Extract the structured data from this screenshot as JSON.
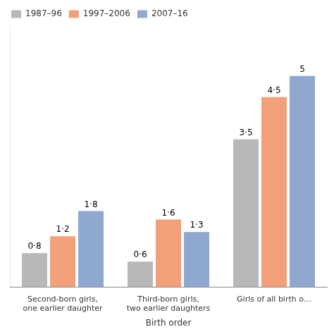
{
  "chart_data": {
    "type": "bar",
    "categories": [
      "Second-born girls,\none earlier daughter",
      "Third-born girls,\ntwo earlier daughters",
      "Girls of all birth o…"
    ],
    "series": [
      {
        "name": "1987–96",
        "color": "#b8b8b8",
        "values": [
          0.8,
          0.6,
          3.5
        ],
        "value_labels": [
          "0·8",
          "0·6",
          "3·5"
        ]
      },
      {
        "name": "1997–2006",
        "color": "#f2a07a",
        "values": [
          1.2,
          1.6,
          4.5
        ],
        "value_labels": [
          "1·2",
          "1·6",
          "4·5"
        ]
      },
      {
        "name": "2007–16",
        "color": "#8fa8cf",
        "values": [
          1.8,
          1.3,
          5.0
        ],
        "value_labels": [
          "1·8",
          "1·3",
          "5"
        ]
      }
    ],
    "xlabel": "Birth order",
    "ylim": [
      0,
      6.2
    ],
    "tick_labels": "x",
    "grid": false,
    "legend": "upper left",
    "data_labels": true
  }
}
